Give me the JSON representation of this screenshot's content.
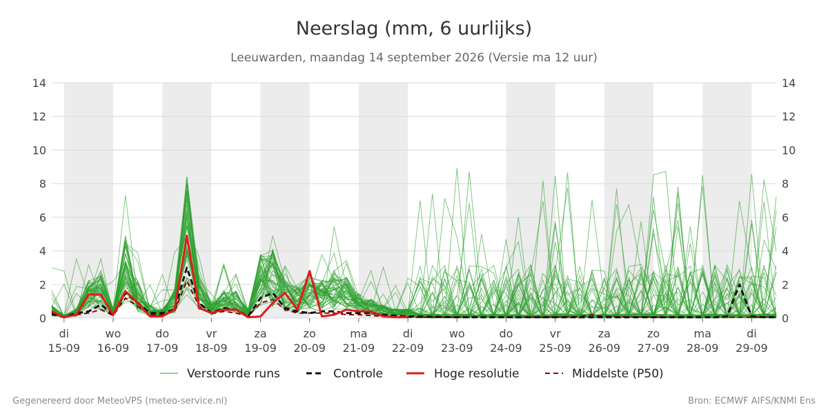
{
  "chart_data": {
    "type": "line",
    "title": "Neerslag (mm, 6 uurlijks)",
    "subtitle": "Leeuwarden, maandag 14 september 2026 (Versie ma 12 uur)",
    "ylim": [
      0,
      14
    ],
    "y_ticks": [
      0,
      2,
      4,
      6,
      8,
      10,
      12,
      14
    ],
    "x_range_days": [
      -0.25,
      14.5
    ],
    "x_ticks": [
      {
        "day": "di",
        "date": "15-09"
      },
      {
        "day": "wo",
        "date": "16-09"
      },
      {
        "day": "do",
        "date": "17-09"
      },
      {
        "day": "vr",
        "date": "18-09"
      },
      {
        "day": "za",
        "date": "19-09"
      },
      {
        "day": "zo",
        "date": "20-09"
      },
      {
        "day": "ma",
        "date": "21-09"
      },
      {
        "day": "di",
        "date": "22-09"
      },
      {
        "day": "wo",
        "date": "23-09"
      },
      {
        "day": "do",
        "date": "24-09"
      },
      {
        "day": "vr",
        "date": "25-09"
      },
      {
        "day": "za",
        "date": "26-09"
      },
      {
        "day": "zo",
        "date": "27-09"
      },
      {
        "day": "ma",
        "date": "28-09"
      },
      {
        "day": "di",
        "date": "29-09"
      }
    ],
    "shaded_day_bands": [
      0,
      2,
      4,
      6,
      9,
      11,
      13
    ],
    "grid": true,
    "legend": {
      "position": "bottom",
      "entries": [
        "Verstoorde runs",
        "Controle",
        "Hoge resolutie",
        "Middelste (P50)"
      ]
    },
    "colors": {
      "ensemble": "#2ca02c",
      "control": "#111111",
      "hires": "#e11a1a",
      "median": "#8b0000",
      "band": "#ececec",
      "grid": "#d9d9d9"
    },
    "series": [
      {
        "name": "Controle",
        "x": [
          -0.25,
          0,
          0.25,
          0.5,
          0.75,
          1,
          1.25,
          1.5,
          1.75,
          2,
          2.25,
          2.5,
          2.75,
          3,
          3.25,
          3.5,
          3.75,
          4,
          4.25,
          4.5,
          4.75,
          5,
          5.25,
          5.5,
          5.75,
          6,
          6.25,
          6.5,
          7,
          8,
          9,
          10,
          11,
          12,
          13,
          13.25,
          13.5,
          13.75,
          14,
          14.25,
          14.5
        ],
        "y": [
          0.3,
          0.05,
          0.3,
          0.4,
          0.8,
          0.2,
          1.5,
          0.9,
          0.3,
          0.3,
          0.5,
          3.0,
          0.9,
          0.3,
          0.6,
          0.5,
          0.1,
          1.2,
          1.5,
          0.6,
          0.4,
          0.3,
          0.4,
          0.4,
          0.3,
          0.3,
          0.3,
          0.2,
          0.1,
          0.05,
          0.05,
          0.05,
          0.05,
          0.05,
          0.05,
          0.05,
          0.1,
          2.0,
          0.1,
          0.05,
          0.05
        ]
      },
      {
        "name": "Hoge resolutie",
        "x": [
          -0.25,
          0,
          0.25,
          0.5,
          0.75,
          1,
          1.25,
          1.5,
          1.75,
          2,
          2.25,
          2.5,
          2.75,
          3,
          3.25,
          3.5,
          3.75,
          4,
          4.25,
          4.5,
          4.75,
          5,
          5.25,
          5.5,
          5.75,
          6,
          6.25,
          6.5,
          6.75,
          7
        ],
        "y": [
          0.4,
          0.05,
          0.2,
          1.4,
          1.4,
          0.2,
          1.6,
          0.9,
          0.1,
          0.1,
          0.5,
          4.9,
          0.6,
          0.3,
          0.5,
          0.5,
          0.05,
          0.1,
          0.9,
          1.5,
          0.5,
          2.8,
          0.1,
          0.2,
          0.5,
          0.4,
          0.4,
          0.1,
          0.05,
          0.05
        ]
      },
      {
        "name": "Middelste (P50)",
        "x": [
          -0.25,
          0,
          0.25,
          0.5,
          0.75,
          1,
          1.25,
          1.5,
          1.75,
          2,
          2.25,
          2.5,
          2.75,
          3,
          3.25,
          3.5,
          3.75,
          4,
          4.25,
          4.5,
          4.75,
          5,
          5.25,
          5.5,
          5.75,
          6,
          6.25,
          6.5,
          7,
          8,
          9,
          10,
          10.5,
          10.75,
          11,
          12,
          13,
          14,
          14.5
        ],
        "y": [
          0.2,
          0.05,
          0.2,
          0.3,
          0.5,
          0.15,
          1.2,
          0.7,
          0.2,
          0.2,
          0.4,
          2.2,
          0.7,
          0.25,
          0.4,
          0.3,
          0.1,
          0.9,
          1.1,
          0.5,
          0.3,
          0.3,
          0.3,
          0.3,
          0.2,
          0.2,
          0.15,
          0.1,
          0.05,
          0.05,
          0.05,
          0.05,
          0.1,
          0.2,
          0.1,
          0.05,
          0.05,
          0.05,
          0.05
        ]
      }
    ]
  },
  "footer": {
    "left": "Gegenereerd door MeteoVPS (meteo-service.nl)",
    "right": "Bron: ECMWF AIFS/KNMI Ens"
  }
}
